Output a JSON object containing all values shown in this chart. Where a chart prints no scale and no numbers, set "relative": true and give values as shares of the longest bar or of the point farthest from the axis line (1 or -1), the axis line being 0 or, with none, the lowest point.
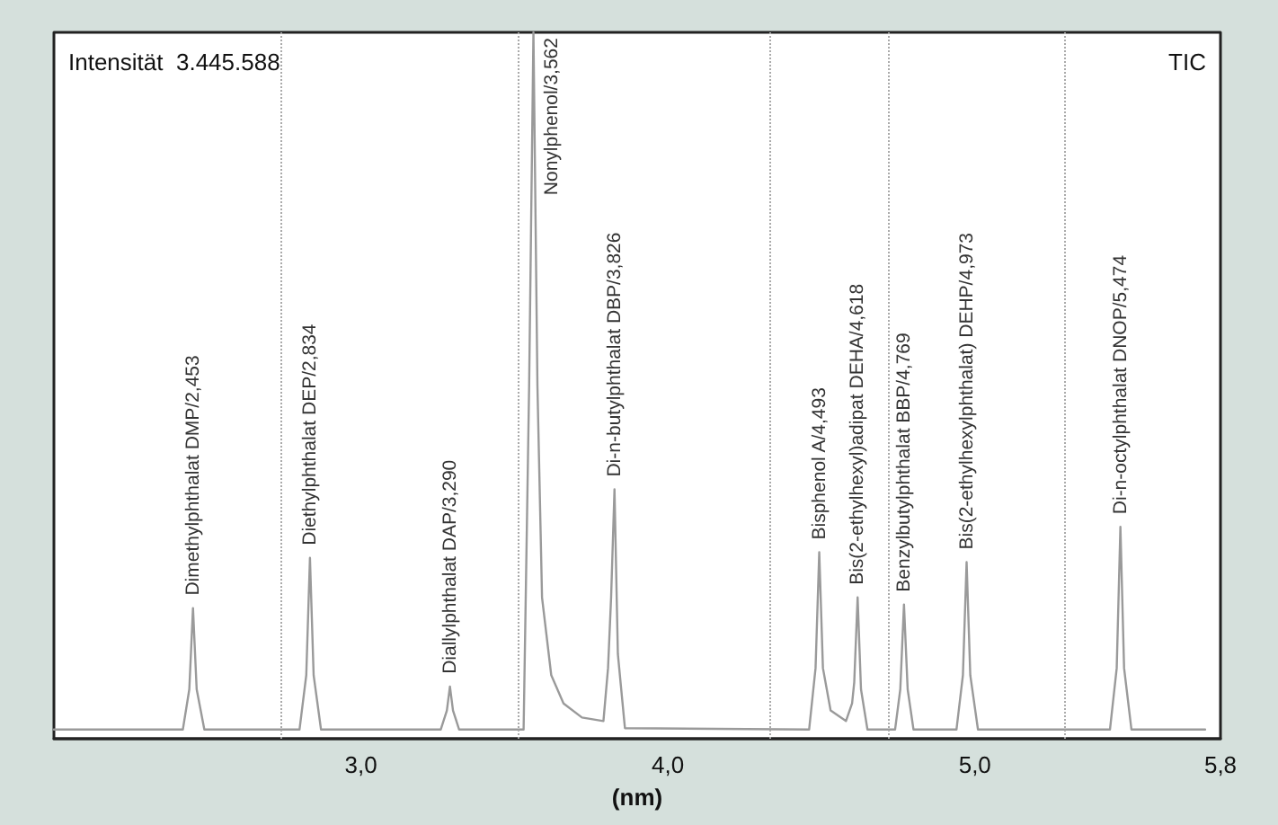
{
  "chart_data": {
    "type": "line",
    "relative": true,
    "xlabel": "(nm)",
    "xlim": [
      2.0,
      5.8
    ],
    "xticks": [
      {
        "value": 3.0,
        "label": "3,0"
      },
      {
        "value": 4.0,
        "label": "4,0"
      },
      {
        "value": 5.0,
        "label": "5,0"
      },
      {
        "value": 5.8,
        "label": "5,8"
      }
    ],
    "marker": "none",
    "line_style": "solid",
    "grid": false,
    "series": [
      {
        "color": "#9a9a9a",
        "x": [
          2.0,
          2.42,
          2.441,
          2.453,
          2.465,
          2.49,
          2.8,
          2.822,
          2.834,
          2.846,
          2.87,
          3.26,
          3.28,
          3.29,
          3.3,
          3.32,
          3.53,
          3.548,
          3.562,
          3.575,
          3.59,
          3.62,
          3.66,
          3.72,
          3.79,
          3.805,
          3.815,
          3.826,
          3.837,
          3.86,
          4.46,
          4.481,
          4.493,
          4.505,
          4.53,
          4.58,
          4.6,
          4.607,
          4.618,
          4.629,
          4.65,
          4.74,
          4.757,
          4.769,
          4.781,
          4.8,
          4.94,
          4.961,
          4.973,
          4.985,
          5.01,
          5.44,
          5.462,
          5.474,
          5.486,
          5.51,
          5.75
        ],
        "values": [
          0.013,
          0.013,
          0.07,
          0.185,
          0.07,
          0.013,
          0.013,
          0.09,
          0.256,
          0.09,
          0.013,
          0.013,
          0.04,
          0.074,
          0.04,
          0.013,
          0.013,
          0.5,
          1.0,
          0.5,
          0.2,
          0.09,
          0.05,
          0.03,
          0.025,
          0.1,
          0.2,
          0.353,
          0.12,
          0.015,
          0.013,
          0.1,
          0.264,
          0.1,
          0.04,
          0.025,
          0.05,
          0.08,
          0.2,
          0.07,
          0.013,
          0.013,
          0.07,
          0.19,
          0.07,
          0.013,
          0.013,
          0.09,
          0.25,
          0.09,
          0.013,
          0.013,
          0.1,
          0.3,
          0.1,
          0.013,
          0.013
        ]
      }
    ],
    "ref_lines": [
      {
        "axis": "x",
        "value": 2.74,
        "color": "#aaaaaa",
        "line_style": "dotted"
      },
      {
        "axis": "x",
        "value": 3.51,
        "color": "#aaaaaa",
        "line_style": "dotted"
      },
      {
        "axis": "x",
        "value": 4.33,
        "color": "#aaaaaa",
        "line_style": "dotted"
      },
      {
        "axis": "x",
        "value": 4.72,
        "color": "#aaaaaa",
        "line_style": "dotted"
      },
      {
        "axis": "x",
        "value": 5.29,
        "color": "#aaaaaa",
        "line_style": "dotted"
      }
    ],
    "annotations": [
      "Intensität  3.445.588",
      "TIC",
      {
        "text": "Dimethylphthalat DMP/2,453",
        "x": 2.453,
        "y": 0.185
      },
      {
        "text": "Diethylphthalat DEP/2,834",
        "x": 2.834,
        "y": 0.256
      },
      {
        "text": "Diallylphthalat DAP/3,290",
        "x": 3.29,
        "y": 0.074
      },
      {
        "text": "Nonylphenol/3,562",
        "x": 3.562,
        "y": 1.0
      },
      {
        "text": "Di-n-butylphthalat DBP/3,826",
        "x": 3.826,
        "y": 0.353
      },
      {
        "text": "Bisphenol A/4,493",
        "x": 4.493,
        "y": 0.264
      },
      {
        "text": "Bis(2-ethylhexyl)adipat DEHA/4,618",
        "x": 4.618,
        "y": 0.2
      },
      {
        "text": "Benzylbutylphthalat BBP/4,769",
        "x": 4.769,
        "y": 0.19
      },
      {
        "text": "Bis(2-ethylhexylphthalat) DEHP/4,973",
        "x": 4.973,
        "y": 0.25
      },
      {
        "text": "Di-n-octylphthalat DNOP/5,474",
        "x": 5.474,
        "y": 0.3
      }
    ]
  }
}
